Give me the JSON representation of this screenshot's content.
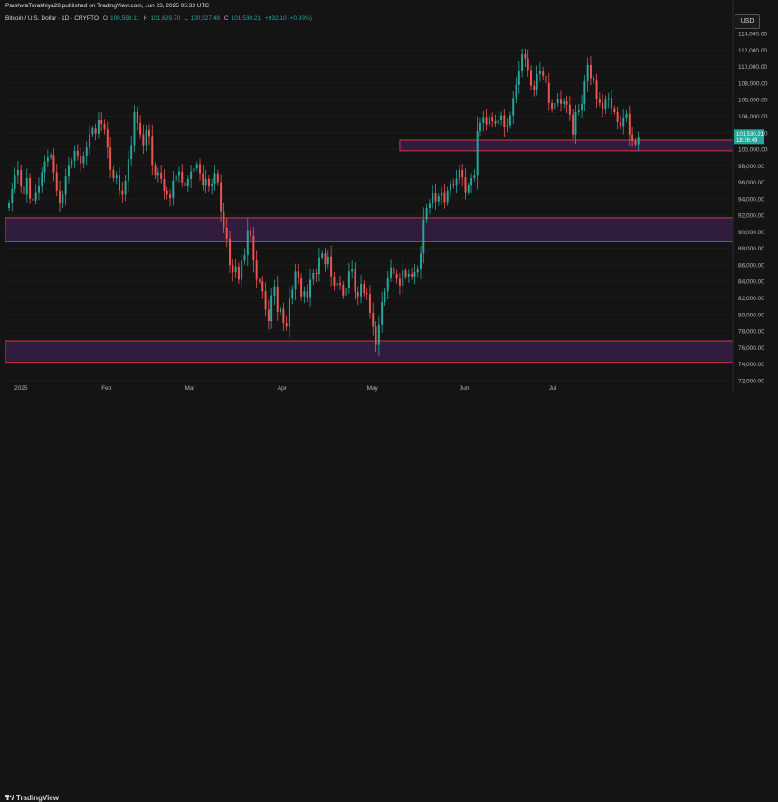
{
  "header": {
    "published": "ParshwaTurakhiya28 published on TradingView.com, Jun 23, 2025 05:33 UTC",
    "symbol": "Bitcoin / U.S. Dollar · 1D · CRYPTO",
    "ohlc": {
      "o_label": "O",
      "o_value": "100,598.11",
      "h_label": "H",
      "h_value": "101,629.70",
      "l_label": "L",
      "l_value": "100,527.48",
      "c_label": "C",
      "c_value": "101,530.21",
      "change": "+932.10 (+0.93%)"
    }
  },
  "currency_label": "USD",
  "price_badge": "101,530.21",
  "price_badge_sub": "18:26:49",
  "footer": {
    "brand": "TradingView"
  },
  "colors": {
    "up": "#26a69a",
    "down": "#ef5350",
    "zone_fill": "#3a1f4a",
    "zone_border": "#f23645",
    "background": "#141414"
  },
  "chart_data": {
    "type": "candlestick",
    "x_ticks": [
      "2025",
      "Feb",
      "Mar",
      "Apr",
      "May",
      "Jun",
      "Jul"
    ],
    "y_ticks": [
      "114,000.00",
      "112,000.00",
      "110,000.00",
      "108,000.00",
      "106,000.00",
      "104,000.00",
      "102,000.00",
      "100,000.00",
      "98,000.00",
      "96,000.00",
      "94,000.00",
      "92,000.00",
      "90,000.00",
      "88,000.00",
      "86,000.00",
      "84,000.00",
      "82,000.00",
      "80,000.00",
      "78,000.00",
      "76,000.00",
      "74,000.00",
      "72,000.00"
    ],
    "ylim": [
      71000,
      115000
    ],
    "zones": [
      {
        "low": 99800,
        "high": 101100
      },
      {
        "low": 88800,
        "high": 91700
      },
      {
        "low": 74200,
        "high": 76800
      }
    ],
    "closes": [
      93500,
      95200,
      96800,
      97500,
      95500,
      94500,
      96500,
      94000,
      93800,
      94800,
      95500,
      97200,
      98500,
      99000,
      99300,
      97200,
      95000,
      93500,
      94500,
      96700,
      98000,
      98600,
      99800,
      99100,
      98300,
      99200,
      100200,
      101800,
      102500,
      101900,
      103500,
      103100,
      102400,
      100200,
      97500,
      96500,
      96800,
      95000,
      94500,
      96200,
      98800,
      100500,
      104500,
      103200,
      101800,
      100500,
      102300,
      101600,
      98000,
      96800,
      97200,
      96400,
      95000,
      94500,
      94100,
      96200,
      96800,
      97300,
      96000,
      95500,
      96400,
      97300,
      97700,
      98200,
      97100,
      95600,
      96400,
      95500,
      95800,
      97100,
      96000,
      92500,
      90500,
      89200,
      86000,
      85100,
      85800,
      84200,
      86500,
      87200,
      90200,
      89500,
      86500,
      84200,
      84000,
      82800,
      80600,
      79200,
      82300,
      83400,
      80300,
      80700,
      79000,
      78500,
      81900,
      83000,
      85200,
      84400,
      82200,
      82800,
      82000,
      84200,
      85000,
      84900,
      86900,
      87400,
      86100,
      87000,
      84600,
      83500,
      83800,
      83600,
      82300,
      83200,
      85200,
      85500,
      82700,
      82200,
      83700,
      82600,
      82500,
      80200,
      78500,
      76300,
      78800,
      81500,
      82800,
      84500,
      85700,
      84900,
      84300,
      83500,
      85300,
      84600,
      84900,
      84600,
      85100,
      85500,
      87400,
      91500,
      92900,
      93400,
      94700,
      93700,
      94300,
      94800,
      93600,
      95000,
      95700,
      95600,
      96400,
      97500,
      96600,
      94800,
      95600,
      96500,
      96800,
      102200,
      103200,
      103900,
      103000,
      103900,
      103400,
      103100,
      103500,
      104100,
      102700,
      102900,
      104100,
      106200,
      107800,
      109500,
      111500,
      111000,
      109600,
      107700,
      107200,
      109100,
      109500,
      108900,
      108000,
      105600,
      104800,
      105600,
      106000,
      105500,
      105800,
      105400,
      104200,
      101800,
      104500,
      104700,
      105500,
      108200,
      110200,
      108600,
      108300,
      106100,
      105600,
      104900,
      106000,
      106200,
      105000,
      104500,
      103300,
      102800,
      103800,
      104300,
      101800,
      101000,
      100600,
      101500
    ]
  }
}
